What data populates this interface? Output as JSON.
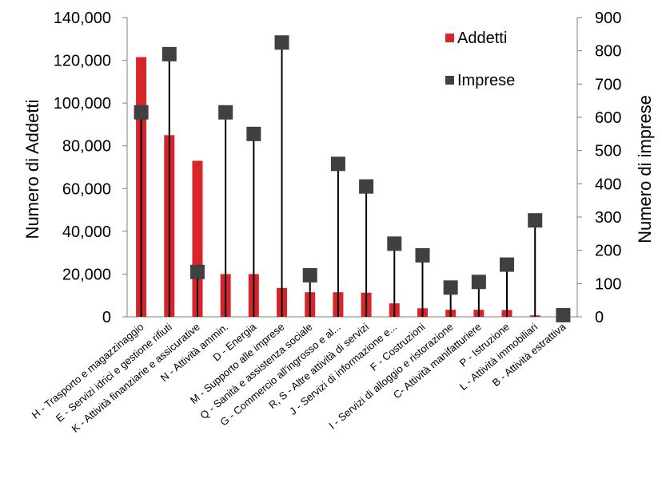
{
  "chart_data": {
    "type": "bar",
    "categories": [
      "H - Trasporto e magazzinaggio",
      "E - Servizi idrici e gestione rifiuti",
      "K - Attività finanziarie e assicurative",
      "N - Attività ammin.",
      "D - Energia",
      "M - Supporto alle imprese",
      "Q - Sanità e assistenza sociale",
      "G - Commercio all'ingrosso e al...",
      "R, S - Altre attività di servizi",
      "J - Servizi di informazione e...",
      "F - Costruzioni",
      "I - Servizi di alloggio e ristorazione",
      "C- Attività manifatturiere",
      "P - Istruzione",
      "L - Attività immobiliari",
      "B - Attività estrattiva"
    ],
    "series": [
      {
        "name": "Addetti",
        "type": "bar",
        "axis": "left",
        "color": "#d7262b",
        "values": [
          121500,
          85000,
          73000,
          20000,
          20000,
          13500,
          11500,
          11500,
          11300,
          6300,
          4000,
          3300,
          3300,
          3200,
          700,
          100
        ]
      },
      {
        "name": "Imprese",
        "type": "scatter",
        "axis": "right",
        "marker": "square",
        "color": "#404040",
        "values": [
          615,
          790,
          135,
          615,
          550,
          825,
          125,
          460,
          392,
          220,
          185,
          88,
          105,
          157,
          290,
          5
        ]
      }
    ],
    "ylabel": "Numero di Addetti",
    "y2label": "Numero di imprese",
    "ylim": [
      0,
      140000
    ],
    "y2lim": [
      0,
      900
    ],
    "yticks": [
      "0",
      "20,000",
      "40,000",
      "60,000",
      "80,000",
      "100,000",
      "120,000",
      "140,000"
    ],
    "y2ticks": [
      "0",
      "100",
      "200",
      "300",
      "400",
      "500",
      "600",
      "700",
      "800",
      "900"
    ],
    "legend": {
      "placement": "top-right",
      "entries": [
        "Addetti",
        "Imprese"
      ]
    },
    "grid": false,
    "drop_lines": true
  }
}
